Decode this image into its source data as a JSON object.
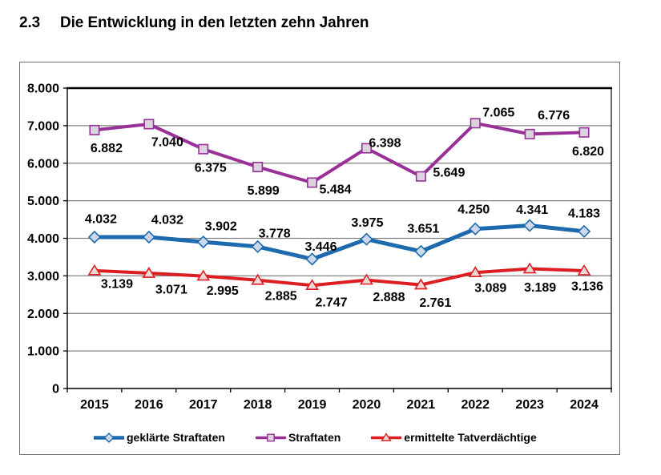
{
  "page": {
    "section_number": "2.3"
  },
  "chart_data": {
    "type": "line",
    "title": "Die Entwicklung in den letzten zehn Jahren",
    "categories": [
      "2015",
      "2016",
      "2017",
      "2018",
      "2019",
      "2020",
      "2021",
      "2022",
      "2023",
      "2024"
    ],
    "series": [
      {
        "name": "geklärte Straftaten",
        "color": "#1E6AAE",
        "line_width": 5,
        "marker": "diamond",
        "marker_fill": "#CDD9EA",
        "values": [
          4032,
          4032,
          3902,
          3778,
          3446,
          3975,
          3651,
          4250,
          4341,
          4183
        ],
        "labels": [
          "4.032",
          "4.032",
          "3.902",
          "3.778",
          "3.446",
          "3.975",
          "3.651",
          "4.250",
          "4.341",
          "4.183"
        ],
        "label_offsets": [
          [
            8,
            -23
          ],
          [
            23,
            -22
          ],
          [
            22,
            -20
          ],
          [
            21,
            -17
          ],
          [
            11,
            -16
          ],
          [
            1,
            -21
          ],
          [
            3,
            -29
          ],
          [
            -2,
            -25
          ],
          [
            3,
            -20
          ],
          [
            0,
            -23
          ]
        ]
      },
      {
        "name": "Straftaten",
        "color": "#993097",
        "line_width": 4,
        "marker": "square",
        "marker_fill": "#DBD3DE",
        "values": [
          6882,
          7040,
          6375,
          5899,
          5484,
          6398,
          5649,
          7065,
          6776,
          6820
        ],
        "labels": [
          "6.882",
          "7.040",
          "6.375",
          "5.899",
          "5.484",
          "6.398",
          "5.649",
          "7.065",
          "6.776",
          "6.820"
        ],
        "label_offsets": [
          [
            15,
            22
          ],
          [
            23,
            22
          ],
          [
            9,
            23
          ],
          [
            7,
            29
          ],
          [
            29,
            8
          ],
          [
            23,
            -7
          ],
          [
            35,
            -5
          ],
          [
            29,
            -14
          ],
          [
            30,
            -24
          ],
          [
            5,
            23
          ]
        ]
      },
      {
        "name": "ermittelte Tatverdächtige",
        "color": "#DC1E22",
        "line_width": 4,
        "marker": "triangle",
        "marker_fill": "#EDD9D6",
        "values": [
          3139,
          3071,
          2995,
          2885,
          2747,
          2888,
          2761,
          3089,
          3189,
          3136
        ],
        "labels": [
          "3.139",
          "3.071",
          "2.995",
          "2.885",
          "2.747",
          "2.888",
          "2.761",
          "3.089",
          "3.189",
          "3.136"
        ],
        "label_offsets": [
          [
            28,
            16
          ],
          [
            28,
            20
          ],
          [
            24,
            18
          ],
          [
            29,
            19
          ],
          [
            24,
            21
          ],
          [
            28,
            21
          ],
          [
            18,
            22
          ],
          [
            19,
            19
          ],
          [
            13,
            23
          ],
          [
            4,
            19
          ]
        ]
      }
    ],
    "ylim": [
      0,
      8000
    ],
    "ytick_step": 1000,
    "ytick_labels": [
      "0",
      "1.000",
      "2.000",
      "3.000",
      "4.000",
      "5.000",
      "6.000",
      "7.000",
      "8.000"
    ],
    "grid": true,
    "legend_position": "bottom"
  }
}
